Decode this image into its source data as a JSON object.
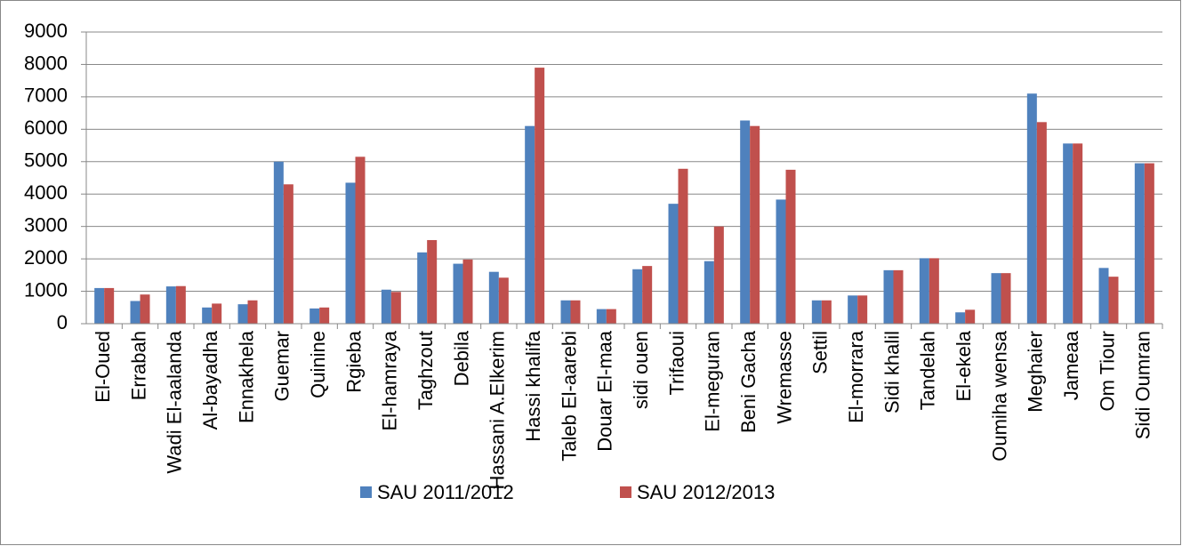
{
  "chart_data": {
    "type": "bar",
    "categories": [
      "El-Oued",
      "Errabah",
      "Wadi El-aalanda",
      "Al-bayadha",
      "Ennakhela",
      "Guemar",
      "Quinine",
      "Rgieba",
      "El-hamraya",
      "Taghzout",
      "Debila",
      "Hassani A.Elkerim",
      "Hassi khalifa",
      "Taleb El-aarebi",
      "Douar El-maa",
      "sidi ouen",
      "Trifaoui",
      "El-meguran",
      "Beni Gacha",
      "Wremasse",
      "Settil",
      "El-morrara",
      "Sidi khalil",
      "Tandelah",
      "El-ekela",
      "Oumiha wensa",
      "Meghaier",
      "Jameaa",
      "Om Tiour",
      "Sidi Oumran"
    ],
    "series": [
      {
        "name": "SAU 2011/2012",
        "color": "#4f81bd",
        "values": [
          1100,
          700,
          1150,
          500,
          600,
          5000,
          470,
          4350,
          1050,
          2200,
          1850,
          1600,
          6100,
          720,
          450,
          1680,
          3700,
          1930,
          6270,
          3830,
          720,
          870,
          1650,
          2020,
          350,
          1560,
          7100,
          5560,
          1720,
          4950
        ]
      },
      {
        "name": "SAU 2012/2013",
        "color": "#c0504d",
        "values": [
          1100,
          900,
          1160,
          620,
          720,
          4300,
          500,
          5150,
          980,
          2580,
          1980,
          1420,
          7900,
          720,
          450,
          1780,
          4780,
          3000,
          6100,
          4750,
          720,
          870,
          1650,
          2020,
          430,
          1560,
          6220,
          5560,
          1450,
          4950
        ]
      }
    ],
    "ylim": [
      0,
      9000
    ],
    "yticks": [
      0,
      1000,
      2000,
      3000,
      4000,
      5000,
      6000,
      7000,
      8000,
      9000
    ],
    "grid": true,
    "legend": "bottom"
  }
}
